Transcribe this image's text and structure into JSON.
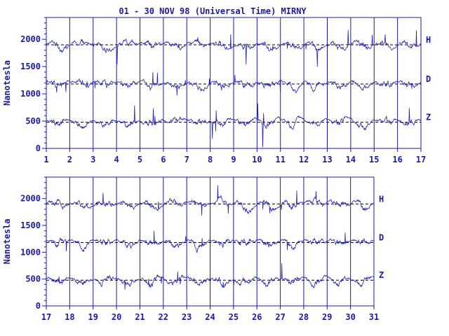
{
  "title": "01 - 30 NOV 98 (Universal Time) MIRNY",
  "colors": {
    "ink": "#1a1aa0",
    "trace": "#2020b0",
    "background": "#ffffff"
  },
  "chart_data": [
    {
      "type": "line",
      "panel": "top",
      "ylabel": "Nanotesla",
      "ylim": [
        0,
        2400
      ],
      "yticks": [
        0,
        500,
        1000,
        1500,
        2000
      ],
      "xlim": [
        1,
        17
      ],
      "xticks": [
        "1",
        "2",
        "3",
        "4",
        "5",
        "6",
        "7",
        "8",
        "9",
        "10",
        "11",
        "12",
        "13",
        "14",
        "15",
        "16",
        "17"
      ],
      "grid": "vertical lines at each day",
      "series": [
        {
          "name": "H",
          "baseline": 1900,
          "approx_range": [
            1500,
            2400
          ]
        },
        {
          "name": "D",
          "baseline": 1180,
          "approx_range": [
            700,
            1400
          ]
        },
        {
          "name": "Z",
          "baseline": 480,
          "approx_range": [
            0,
            1100
          ]
        }
      ]
    },
    {
      "type": "line",
      "panel": "bottom",
      "ylabel": "Nanotesla",
      "ylim": [
        0,
        2400
      ],
      "yticks": [
        0,
        500,
        1000,
        1500,
        2000
      ],
      "xlim": [
        17,
        31
      ],
      "xticks": [
        "17",
        "18",
        "19",
        "20",
        "21",
        "22",
        "23",
        "24",
        "25",
        "26",
        "27",
        "28",
        "29",
        "30",
        "31"
      ],
      "grid": "vertical lines at each day",
      "series": [
        {
          "name": "H",
          "baseline": 1900,
          "approx_range": [
            1600,
            2300
          ]
        },
        {
          "name": "D",
          "baseline": 1180,
          "approx_range": [
            800,
            1500
          ]
        },
        {
          "name": "Z",
          "baseline": 480,
          "approx_range": [
            0,
            800
          ]
        }
      ]
    }
  ]
}
